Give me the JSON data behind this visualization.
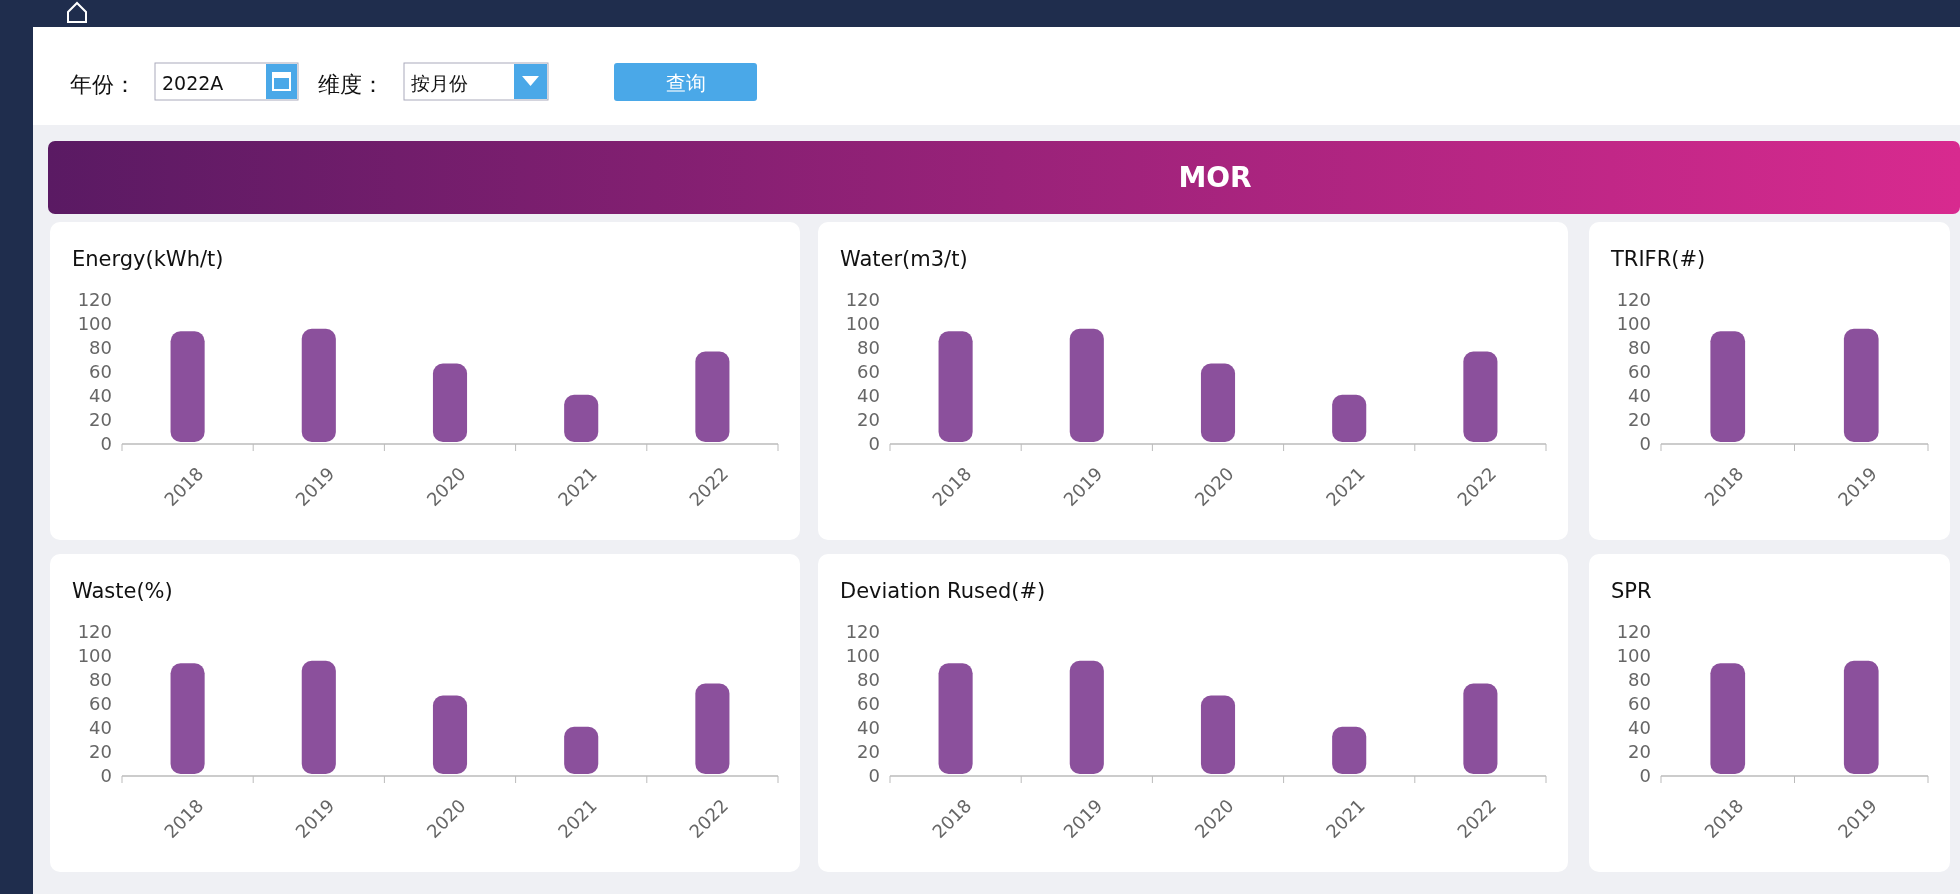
{
  "chart_data": [
    {
      "type": "other",
      "title": "MOR",
      "annotations": [
        "年份：",
        "2022A",
        "维度：",
        "按月份",
        "查询"
      ]
    },
    {
      "type": "bar",
      "title": "Energy(kWh/t)",
      "categories": [
        "2018",
        "2019",
        "2020",
        "2021",
        "2022"
      ],
      "values": [
        94,
        96,
        67,
        41,
        77
      ],
      "color": "#8b509c",
      "ylim": [
        0,
        120
      ],
      "yticks": [
        0,
        20,
        40,
        60,
        80,
        100,
        120
      ]
    },
    {
      "type": "bar",
      "title": "Water(m3/t)",
      "categories": [
        "2018",
        "2019",
        "2020",
        "2021",
        "2022"
      ],
      "values": [
        94,
        96,
        67,
        41,
        77
      ],
      "color": "#8b509c",
      "ylim": [
        0,
        120
      ],
      "yticks": [
        0,
        20,
        40,
        60,
        80,
        100,
        120
      ]
    },
    {
      "type": "bar",
      "title": "TRIFR(#)",
      "categories": [
        "2018",
        "2019"
      ],
      "values": [
        94,
        96
      ],
      "color": "#8b509c",
      "ylim": [
        0,
        120
      ],
      "yticks": [
        0,
        20,
        40,
        60,
        80,
        100,
        120
      ]
    },
    {
      "type": "bar",
      "title": "Waste(%)",
      "categories": [
        "2018",
        "2019",
        "2020",
        "2021",
        "2022"
      ],
      "values": [
        94,
        96,
        67,
        41,
        77
      ],
      "color": "#8b509c",
      "ylim": [
        0,
        120
      ],
      "yticks": [
        0,
        20,
        40,
        60,
        80,
        100,
        120
      ]
    },
    {
      "type": "bar",
      "title": "Deviation Rused(#)",
      "categories": [
        "2018",
        "2019",
        "2020",
        "2021",
        "2022"
      ],
      "values": [
        94,
        96,
        67,
        41,
        77
      ],
      "color": "#8b509c",
      "ylim": [
        0,
        120
      ],
      "yticks": [
        0,
        20,
        40,
        60,
        80,
        100,
        120
      ]
    },
    {
      "type": "bar",
      "title": "SPR",
      "categories": [
        "2018",
        "2019"
      ],
      "values": [
        94,
        96
      ],
      "color": "#8b509c",
      "ylim": [
        0,
        120
      ],
      "yticks": [
        0,
        20,
        40,
        60,
        80,
        100,
        120
      ]
    }
  ]
}
